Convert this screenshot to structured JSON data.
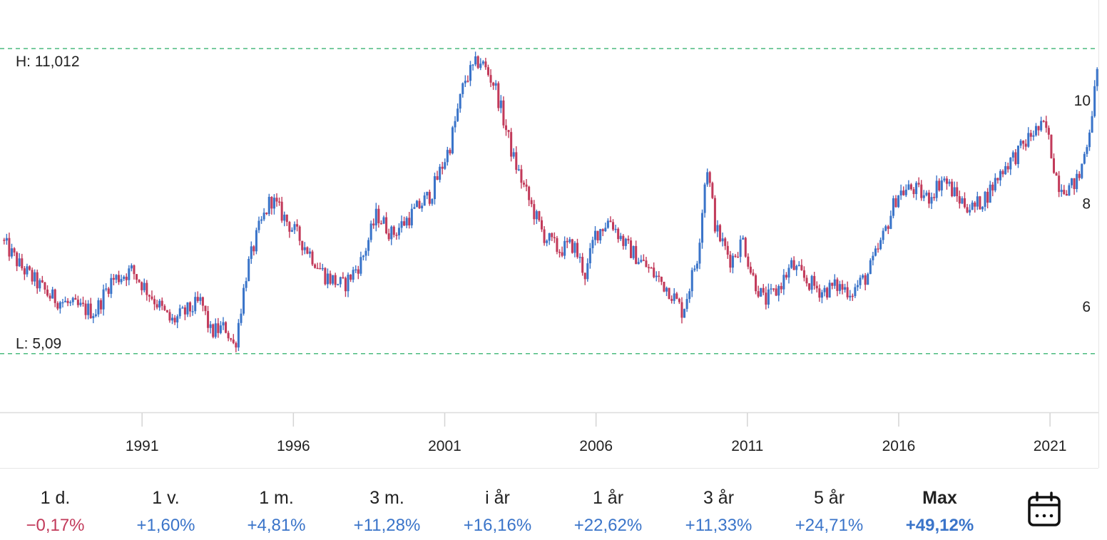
{
  "chart_data": {
    "type": "candlestick",
    "high_label": "H: 11,012",
    "low_label": "L: 5,09",
    "high_value": 11.012,
    "low_value": 5.09,
    "y_ticks": [
      6,
      8,
      10
    ],
    "y_tick_labels": [
      "6",
      "8",
      "10"
    ],
    "x_ticks": [
      1991,
      1996,
      2001,
      2006,
      2011,
      2016,
      2021
    ],
    "x_tick_labels": [
      "1991",
      "1996",
      "2001",
      "2006",
      "2011",
      "2016",
      "2021"
    ],
    "x_range": [
      1986.4,
      2022.6
    ],
    "y_range": [
      3.95,
      11.54
    ],
    "up_color": "#3a74c9",
    "down_color": "#c23a5a",
    "hl_line_color": "#4cbb7f",
    "series_trend": [
      [
        1986.4,
        7.3
      ],
      [
        1987.0,
        6.8
      ],
      [
        1988.0,
        6.2
      ],
      [
        1988.8,
        6.0
      ],
      [
        1989.5,
        5.9
      ],
      [
        1990.0,
        6.5
      ],
      [
        1990.7,
        6.7
      ],
      [
        1991.5,
        6.1
      ],
      [
        1992.0,
        5.7
      ],
      [
        1992.5,
        5.9
      ],
      [
        1993.0,
        6.1
      ],
      [
        1993.3,
        5.5
      ],
      [
        1993.8,
        5.6
      ],
      [
        1994.1,
        5.2
      ],
      [
        1994.5,
        6.7
      ],
      [
        1994.9,
        7.5
      ],
      [
        1995.3,
        8.1
      ],
      [
        1995.9,
        7.6
      ],
      [
        1996.4,
        7.2
      ],
      [
        1997.1,
        6.6
      ],
      [
        1997.7,
        6.4
      ],
      [
        1998.3,
        6.9
      ],
      [
        1998.8,
        7.8
      ],
      [
        1999.3,
        7.4
      ],
      [
        1999.8,
        7.7
      ],
      [
        2000.6,
        8.2
      ],
      [
        2001.2,
        9.1
      ],
      [
        2001.7,
        10.4
      ],
      [
        2002.2,
        10.8
      ],
      [
        2002.7,
        10.3
      ],
      [
        2003.3,
        8.9
      ],
      [
        2003.8,
        8.1
      ],
      [
        2004.3,
        7.4
      ],
      [
        2004.8,
        7.1
      ],
      [
        2005.3,
        7.2
      ],
      [
        2005.7,
        6.6
      ],
      [
        2006.0,
        7.4
      ],
      [
        2006.5,
        7.7
      ],
      [
        2007.0,
        7.2
      ],
      [
        2007.5,
        6.9
      ],
      [
        2008.0,
        6.6
      ],
      [
        2008.5,
        6.3
      ],
      [
        2008.9,
        5.9
      ],
      [
        2009.4,
        7.0
      ],
      [
        2009.7,
        8.8
      ],
      [
        2010.0,
        7.5
      ],
      [
        2010.5,
        6.9
      ],
      [
        2010.9,
        7.3
      ],
      [
        2011.2,
        6.6
      ],
      [
        2011.6,
        6.1
      ],
      [
        2012.0,
        6.3
      ],
      [
        2012.5,
        6.8
      ],
      [
        2013.0,
        6.5
      ],
      [
        2013.5,
        6.3
      ],
      [
        2014.0,
        6.4
      ],
      [
        2014.5,
        6.3
      ],
      [
        2015.0,
        6.6
      ],
      [
        2015.5,
        7.3
      ],
      [
        2016.0,
        8.2
      ],
      [
        2016.5,
        8.3
      ],
      [
        2017.0,
        8.1
      ],
      [
        2017.5,
        8.5
      ],
      [
        2018.0,
        8.1
      ],
      [
        2018.5,
        7.9
      ],
      [
        2019.0,
        8.2
      ],
      [
        2019.5,
        8.7
      ],
      [
        2020.0,
        9.0
      ],
      [
        2020.5,
        9.4
      ],
      [
        2020.9,
        9.5
      ],
      [
        2021.3,
        8.4
      ],
      [
        2021.7,
        8.3
      ],
      [
        2022.0,
        8.5
      ],
      [
        2022.3,
        9.3
      ],
      [
        2022.6,
        10.5
      ]
    ]
  },
  "periods": [
    {
      "label": "1 d.",
      "change": "−0,17%",
      "dir": "neg"
    },
    {
      "label": "1 v.",
      "change": "+1,60%",
      "dir": "pos"
    },
    {
      "label": "1 m.",
      "change": "+4,81%",
      "dir": "pos"
    },
    {
      "label": "3 m.",
      "change": "+11,28%",
      "dir": "pos"
    },
    {
      "label": "i år",
      "change": "+16,16%",
      "dir": "pos"
    },
    {
      "label": "1 år",
      "change": "+22,62%",
      "dir": "pos"
    },
    {
      "label": "3 år",
      "change": "+11,33%",
      "dir": "pos"
    },
    {
      "label": "5 år",
      "change": "+24,71%",
      "dir": "pos"
    },
    {
      "label": "Max",
      "change": "+49,12%",
      "dir": "pos",
      "active": true
    }
  ],
  "calendar_icon": "calendar-icon"
}
